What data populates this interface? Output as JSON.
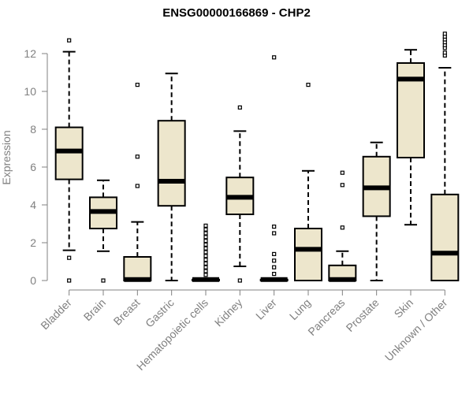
{
  "chart_data": {
    "type": "box",
    "title": "ENSG00000166869 - CHP2",
    "xlabel": "",
    "ylabel": "Expression",
    "ylim": [
      0,
      12.5
    ],
    "yticks": [
      0,
      2,
      4,
      6,
      8,
      10,
      12
    ],
    "box_fill": "#ede6cc",
    "categories": [
      "Bladder",
      "Brain",
      "Breast",
      "Gastric",
      "Hematopoietic cells",
      "Kidney",
      "Liver",
      "Lung",
      "Pancreas",
      "Prostate",
      "Skin",
      "Unknown / Other"
    ],
    "boxes": [
      {
        "category": "Bladder",
        "whisker_low": 1.6,
        "q1": 5.35,
        "median": 6.85,
        "q3": 8.1,
        "whisker_high": 12.1,
        "outliers": [
          12.7,
          1.2,
          0.0
        ]
      },
      {
        "category": "Brain",
        "whisker_low": 1.55,
        "q1": 2.75,
        "median": 3.65,
        "q3": 4.4,
        "whisker_high": 5.3,
        "outliers": [
          0.0
        ]
      },
      {
        "category": "Breast",
        "whisker_low": 0.0,
        "q1": 0.0,
        "median": 0.05,
        "q3": 1.25,
        "whisker_high": 3.1,
        "outliers": [
          10.35,
          6.55,
          5.0
        ]
      },
      {
        "category": "Gastric",
        "whisker_low": 0.0,
        "q1": 3.95,
        "median": 5.25,
        "q3": 8.45,
        "whisker_high": 10.95,
        "outliers": []
      },
      {
        "category": "Hematopoietic cells",
        "whisker_low": 0.0,
        "q1": 0.0,
        "median": 0.05,
        "q3": 0.05,
        "whisker_high": 0.1,
        "outliers": [
          0.3,
          0.5,
          0.7,
          0.9,
          1.1,
          1.3,
          1.5,
          1.7,
          1.9,
          2.1,
          2.3,
          2.5,
          2.7,
          2.9
        ]
      },
      {
        "category": "Kidney",
        "whisker_low": 0.75,
        "q1": 3.5,
        "median": 4.4,
        "q3": 5.45,
        "whisker_high": 7.9,
        "outliers": [
          9.15,
          0.0
        ]
      },
      {
        "category": "Liver",
        "whisker_low": 0.0,
        "q1": 0.0,
        "median": 0.05,
        "q3": 0.05,
        "whisker_high": 0.1,
        "outliers": [
          11.8,
          2.85,
          2.5,
          1.4,
          1.05,
          0.7,
          0.35
        ]
      },
      {
        "category": "Lung",
        "whisker_low": 0.0,
        "q1": 0.0,
        "median": 1.65,
        "q3": 2.75,
        "whisker_high": 5.8,
        "outliers": [
          10.35
        ]
      },
      {
        "category": "Pancreas",
        "whisker_low": 0.0,
        "q1": 0.0,
        "median": 0.05,
        "q3": 0.8,
        "whisker_high": 1.55,
        "outliers": [
          5.7,
          5.05,
          2.8
        ]
      },
      {
        "category": "Prostate",
        "whisker_low": 0.0,
        "q1": 3.4,
        "median": 4.9,
        "q3": 6.55,
        "whisker_high": 7.3,
        "outliers": []
      },
      {
        "category": "Skin",
        "whisker_low": 2.95,
        "q1": 6.5,
        "median": 10.65,
        "q3": 11.5,
        "whisker_high": 12.2,
        "outliers": []
      },
      {
        "category": "Unknown / Other",
        "whisker_low": 0.0,
        "q1": 0.0,
        "median": 1.45,
        "q3": 4.55,
        "whisker_high": 11.25,
        "outliers": [
          11.9,
          12.05,
          12.3,
          12.45,
          12.6,
          12.75,
          12.9,
          13.05
        ]
      }
    ]
  }
}
